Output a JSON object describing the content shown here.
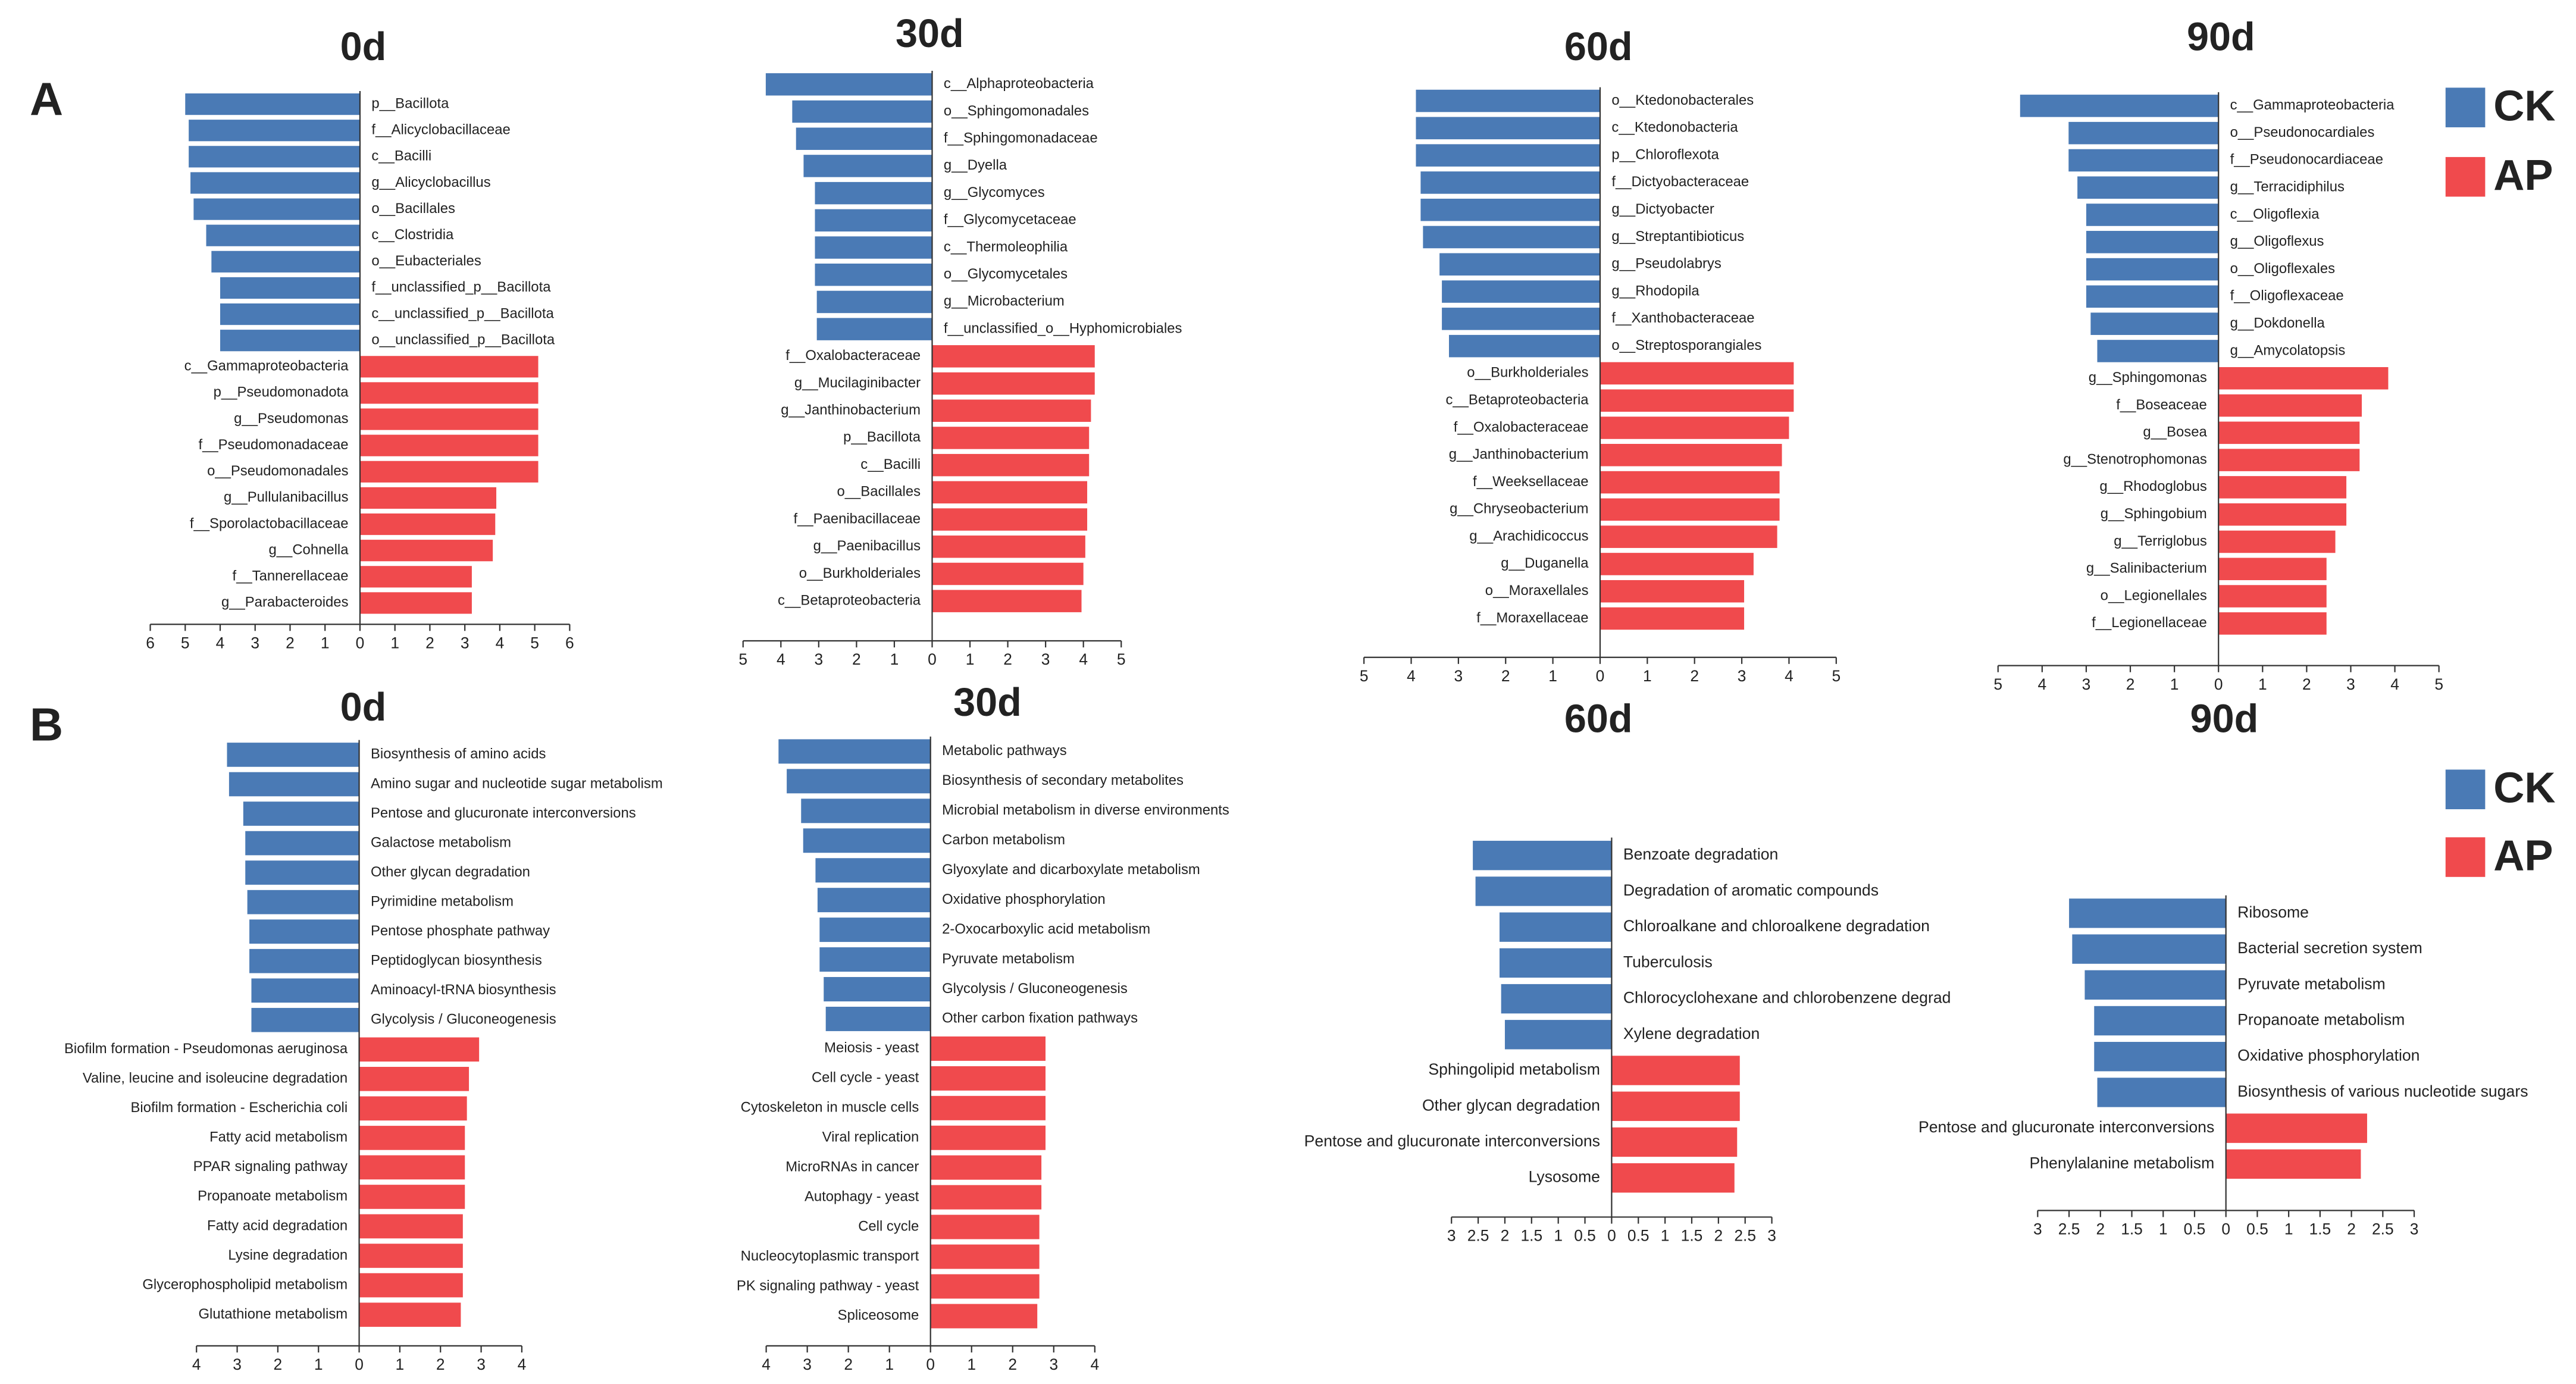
{
  "panels": [
    {
      "label": "A"
    },
    {
      "label": "B"
    }
  ],
  "chart_data": [
    {
      "type": "bar",
      "title": "0d",
      "series": [
        {
          "name": "CK",
          "color": "#4a7ab5",
          "categories": [
            "p__Bacillota",
            "f__Alicyclobacillaceae",
            "c__Bacilli",
            "g__Alicyclobacillus",
            "o__Bacillales",
            "c__Clostridia",
            "o__Eubacteriales",
            "f__unclassified_p__Bacillota",
            "c__unclassified_p__Bacillota",
            "o__unclassified_p__Bacillota"
          ],
          "values": [
            -5.0,
            -4.9,
            -4.9,
            -4.85,
            -4.76,
            -4.4,
            -4.25,
            -4.0,
            -4.0,
            -4.0
          ]
        },
        {
          "name": "AP",
          "color": "#f04a4d",
          "categories": [
            "c__Gammaproteobacteria",
            "p__Pseudomonadota",
            "g__Pseudomonas",
            "f__Pseudomonadaceae",
            "o__Pseudomonadales",
            "g__Pullulanibacillus",
            "f__Sporolactobacillaceae",
            "g__Cohnella",
            "f__Tannerellaceae",
            "g__Parabacteroides"
          ],
          "values": [
            5.1,
            5.1,
            5.1,
            5.1,
            5.1,
            3.9,
            3.87,
            3.8,
            3.2,
            3.2
          ]
        }
      ],
      "xlim": [
        -6,
        6
      ],
      "xticks": [
        {
          "value": -6,
          "label": "6"
        },
        {
          "value": -5,
          "label": "5"
        },
        {
          "value": -4,
          "label": "4"
        },
        {
          "value": -3,
          "label": "3"
        },
        {
          "value": -2,
          "label": "2"
        },
        {
          "value": -1,
          "label": "1"
        },
        0,
        1,
        2,
        3,
        4,
        5,
        6
      ]
    },
    {
      "type": "bar",
      "title": "30d",
      "series": [
        {
          "name": "CK",
          "color": "#4a7ab5",
          "categories": [
            "c__Alphaproteobacteria",
            "o__Sphingomonadales",
            "f__Sphingomonadaceae",
            "g__Dyella",
            "g__Glycomyces",
            "f__Glycomycetaceae",
            "c__Thermoleophilia",
            "o__Glycomycetales",
            "g__Microbacterium",
            "f__unclassified_o__Hyphomicrobiales"
          ],
          "values": [
            -4.4,
            -3.7,
            -3.6,
            -3.4,
            -3.1,
            -3.1,
            -3.1,
            -3.1,
            -3.05,
            -3.05
          ]
        },
        {
          "name": "AP",
          "color": "#f04a4d",
          "categories": [
            "f__Oxalobacteraceae",
            "g__Mucilaginibacter",
            "g__Janthinobacterium",
            "p__Bacillota",
            "c__Bacilli",
            "o__Bacillales",
            "f__Paenibacillaceae",
            "g__Paenibacillus",
            "o__Burkholderiales",
            "c__Betaproteobacteria"
          ],
          "values": [
            4.3,
            4.3,
            4.2,
            4.15,
            4.15,
            4.1,
            4.1,
            4.05,
            4.0,
            3.95
          ]
        }
      ],
      "xlim": [
        -5,
        5
      ],
      "xticks": [
        {
          "value": -5,
          "label": "5"
        },
        {
          "value": -4,
          "label": "4"
        },
        {
          "value": -3,
          "label": "3"
        },
        {
          "value": -2,
          "label": "2"
        },
        {
          "value": -1,
          "label": "1"
        },
        0,
        1,
        2,
        3,
        4,
        5
      ]
    },
    {
      "type": "bar",
      "title": "60d",
      "series": [
        {
          "name": "CK",
          "color": "#4a7ab5",
          "categories": [
            "o__Ktedonobacterales",
            "c__Ktedonobacteria",
            "p__Chloroflexota",
            "f__Dictyobacteraceae",
            "g__Dictyobacter",
            "g__Streptantibioticus",
            "g__Pseudolabrys",
            "g__Rhodopila",
            "f__Xanthobacteraceae",
            "o__Streptosporangiales"
          ],
          "values": [
            -3.9,
            -3.9,
            -3.9,
            -3.8,
            -3.8,
            -3.75,
            -3.4,
            -3.35,
            -3.35,
            -3.2
          ]
        },
        {
          "name": "AP",
          "color": "#f04a4d",
          "categories": [
            "o__Burkholderiales",
            "c__Betaproteobacteria",
            "f__Oxalobacteraceae",
            "g__Janthinobacterium",
            "f__Weeksellaceae",
            "g__Chryseobacterium",
            "g__Arachidicoccus",
            "g__Duganella",
            "o__Moraxellales",
            "f__Moraxellaceae"
          ],
          "values": [
            4.1,
            4.1,
            4.0,
            3.85,
            3.8,
            3.8,
            3.75,
            3.25,
            3.05,
            3.05
          ]
        }
      ],
      "xlim": [
        -5,
        5
      ],
      "xticks": [
        {
          "value": -5,
          "label": "5"
        },
        {
          "value": -4,
          "label": "4"
        },
        {
          "value": -3,
          "label": "3"
        },
        {
          "value": -2,
          "label": "2"
        },
        {
          "value": -1,
          "label": "1"
        },
        0,
        1,
        2,
        3,
        4,
        5
      ]
    },
    {
      "type": "bar",
      "title": "90d",
      "series": [
        {
          "name": "CK",
          "color": "#4a7ab5",
          "categories": [
            "c__Gammaproteobacteria",
            "o__Pseudonocardiales",
            "f__Pseudonocardiaceae",
            "g__Terracidiphilus",
            "c__Oligoflexia",
            "g__Oligoflexus",
            "o__Oligoflexales",
            "f__Oligoflexaceae",
            "g__Dokdonella",
            "g__Amycolatopsis"
          ],
          "values": [
            -4.5,
            -3.4,
            -3.4,
            -3.2,
            -3.0,
            -3.0,
            -3.0,
            -3.0,
            -2.9,
            -2.75
          ]
        },
        {
          "name": "AP",
          "color": "#f04a4d",
          "categories": [
            "g__Sphingomonas",
            "f__Boseaceae",
            "g__Bosea",
            "g__Stenotrophomonas",
            "g__Rhodoglobus",
            "g__Sphingobium",
            "g__Terriglobus",
            "g__Salinibacterium",
            "o__Legionellales",
            "f__Legionellaceae"
          ],
          "values": [
            3.85,
            3.25,
            3.2,
            3.2,
            2.9,
            2.9,
            2.65,
            2.45,
            2.45,
            2.45
          ]
        }
      ],
      "xlim": [
        -5,
        5
      ],
      "xticks": [
        {
          "value": -5,
          "label": "5"
        },
        {
          "value": -4,
          "label": "4"
        },
        {
          "value": -3,
          "label": "3"
        },
        {
          "value": -2,
          "label": "2"
        },
        {
          "value": -1,
          "label": "1"
        },
        0,
        1,
        2,
        3,
        4,
        5
      ]
    },
    {
      "type": "bar",
      "title": "0d",
      "series": [
        {
          "name": "CK",
          "color": "#4a7ab5",
          "categories": [
            "Biosynthesis of amino acids",
            "Amino sugar and nucleotide sugar metabolism",
            "Pentose and glucuronate interconversions",
            "Galactose metabolism",
            "Other glycan degradation",
            "Pyrimidine metabolism",
            "Pentose phosphate pathway",
            "Peptidoglycan biosynthesis",
            "Aminoacyl-tRNA biosynthesis",
            "Glycolysis / Gluconeogenesis"
          ],
          "values": [
            -3.25,
            -3.2,
            -2.85,
            -2.8,
            -2.8,
            -2.75,
            -2.7,
            -2.7,
            -2.65,
            -2.65
          ]
        },
        {
          "name": "AP",
          "color": "#f04a4d",
          "categories": [
            "Biofilm formation - Pseudomonas aeruginosa",
            "Valine, leucine and isoleucine degradation",
            "Biofilm formation - Escherichia coli",
            "Fatty acid metabolism",
            "PPAR signaling pathway",
            "Propanoate metabolism",
            "Fatty acid degradation",
            "Lysine degradation",
            "Glycerophospholipid metabolism",
            "Glutathione metabolism"
          ],
          "values": [
            2.95,
            2.7,
            2.65,
            2.6,
            2.6,
            2.6,
            2.55,
            2.55,
            2.55,
            2.5
          ]
        }
      ],
      "xlim": [
        -4,
        4
      ],
      "xticks": [
        {
          "value": -4,
          "label": "4"
        },
        {
          "value": -3,
          "label": "3"
        },
        {
          "value": -2,
          "label": "2"
        },
        {
          "value": -1,
          "label": "1"
        },
        0,
        1,
        2,
        3,
        4
      ]
    },
    {
      "type": "bar",
      "title": "30d",
      "series": [
        {
          "name": "CK",
          "color": "#4a7ab5",
          "categories": [
            "Metabolic pathways",
            "Biosynthesis of secondary metabolites",
            "Microbial metabolism in diverse environments",
            "Carbon metabolism",
            "Glyoxylate and dicarboxylate metabolism",
            "Oxidative phosphorylation",
            "2-Oxocarboxylic acid metabolism",
            "Pyruvate metabolism",
            "Glycolysis / Gluconeogenesis",
            "Other carbon fixation pathways"
          ],
          "values": [
            -3.7,
            -3.5,
            -3.15,
            -3.1,
            -2.8,
            -2.75,
            -2.7,
            -2.7,
            -2.6,
            -2.55
          ]
        },
        {
          "name": "AP",
          "color": "#f04a4d",
          "categories": [
            "Meiosis - yeast",
            "Cell cycle - yeast",
            "Cytoskeleton in muscle cells",
            "Viral replication",
            "MicroRNAs in cancer",
            "Autophagy - yeast",
            "Cell cycle",
            "Nucleocytoplasmic transport",
            "PK signaling pathway - yeast",
            "Spliceosome"
          ],
          "values": [
            2.8,
            2.8,
            2.8,
            2.8,
            2.7,
            2.7,
            2.65,
            2.65,
            2.65,
            2.6
          ]
        }
      ],
      "xlim": [
        -4,
        4
      ],
      "xticks": [
        {
          "value": -4,
          "label": "4"
        },
        {
          "value": -3,
          "label": "3"
        },
        {
          "value": -2,
          "label": "2"
        },
        {
          "value": -1,
          "label": "1"
        },
        0,
        1,
        2,
        3,
        4
      ]
    },
    {
      "type": "bar",
      "title": "60d",
      "series": [
        {
          "name": "CK",
          "color": "#4a7ab5",
          "categories": [
            "Benzoate degradation",
            "Degradation of aromatic compounds",
            "Chloroalkane and chloroalkene degradation",
            "Tuberculosis",
            "Chlorocyclohexane and chlorobenzene degrad",
            "Xylene degradation"
          ],
          "values": [
            -2.6,
            -2.55,
            -2.1,
            -2.1,
            -2.07,
            -2.0
          ]
        },
        {
          "name": "AP",
          "color": "#f04a4d",
          "categories": [
            "Sphingolipid metabolism",
            "Other glycan degradation",
            "Pentose and glucuronate interconversions",
            "Lysosome"
          ],
          "values": [
            2.4,
            2.4,
            2.35,
            2.3
          ]
        }
      ],
      "xlim": [
        -3,
        3
      ],
      "xticks": [
        {
          "value": -3,
          "label": "3"
        },
        {
          "value": -2.5,
          "label": "2.5"
        },
        {
          "value": -2,
          "label": "2"
        },
        {
          "value": -1.5,
          "label": "1.5"
        },
        {
          "value": -1,
          "label": "1"
        },
        {
          "value": -0.5,
          "label": "0.5"
        },
        0,
        0.5,
        1,
        1.5,
        2,
        2.5,
        3
      ]
    },
    {
      "type": "bar",
      "title": "90d",
      "series": [
        {
          "name": "CK",
          "color": "#4a7ab5",
          "categories": [
            "Ribosome",
            "Bacterial secretion system",
            "Pyruvate metabolism",
            "Propanoate metabolism",
            "Oxidative phosphorylation",
            "Biosynthesis of various nucleotide sugars"
          ],
          "values": [
            -2.5,
            -2.45,
            -2.25,
            -2.1,
            -2.1,
            -2.05
          ]
        },
        {
          "name": "AP",
          "color": "#f04a4d",
          "categories": [
            "Pentose  and glucuronate interconversions",
            "Phenylalanine metabolism"
          ],
          "values": [
            2.25,
            2.15
          ]
        }
      ],
      "xlim": [
        -3,
        3
      ],
      "xticks": [
        {
          "value": -3,
          "label": "3"
        },
        {
          "value": -2.5,
          "label": "2.5"
        },
        {
          "value": -2,
          "label": "2"
        },
        {
          "value": -1.5,
          "label": "1.5"
        },
        {
          "value": -1,
          "label": "1"
        },
        {
          "value": -0.5,
          "label": "0.5"
        },
        0,
        0.5,
        1,
        1.5,
        2,
        2.5,
        3
      ]
    }
  ]
}
